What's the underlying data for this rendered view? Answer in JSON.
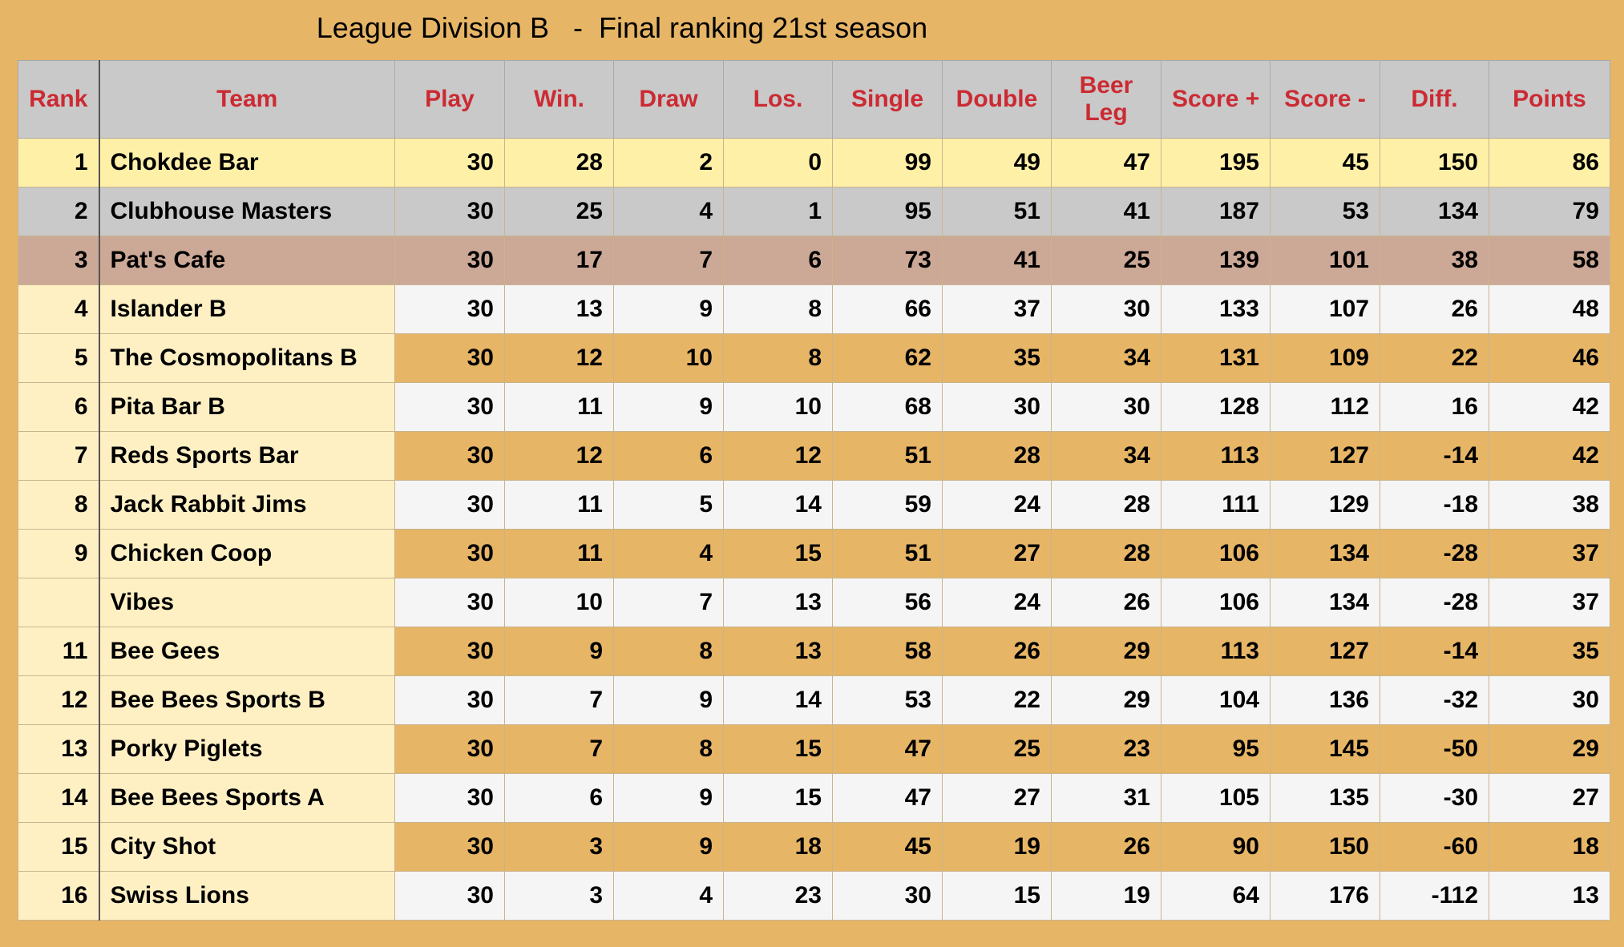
{
  "title": "League Division B   -  Final ranking 21st season",
  "columns": [
    "Rank",
    "Team",
    "Play",
    "Win.",
    "Draw",
    "Los.",
    "Single",
    "Double",
    "Beer Leg",
    "Score +",
    "Score -",
    "Diff.",
    "Points"
  ],
  "rows": [
    {
      "rank": "1",
      "team": "Chokdee Bar",
      "play": "30",
      "win": "28",
      "draw": "2",
      "los": "0",
      "single": "99",
      "double": "49",
      "beer_leg": "47",
      "score_plus": "195",
      "score_minus": "45",
      "diff": "150",
      "points": "86",
      "highlight": "gold"
    },
    {
      "rank": "2",
      "team": "Clubhouse Masters",
      "play": "30",
      "win": "25",
      "draw": "4",
      "los": "1",
      "single": "95",
      "double": "51",
      "beer_leg": "41",
      "score_plus": "187",
      "score_minus": "53",
      "diff": "134",
      "points": "79",
      "highlight": "silver"
    },
    {
      "rank": "3",
      "team": "Pat's Cafe",
      "play": "30",
      "win": "17",
      "draw": "7",
      "los": "6",
      "single": "73",
      "double": "41",
      "beer_leg": "25",
      "score_plus": "139",
      "score_minus": "101",
      "diff": "38",
      "points": "58",
      "highlight": "bronze"
    },
    {
      "rank": "4",
      "team": "Islander B",
      "play": "30",
      "win": "13",
      "draw": "9",
      "los": "8",
      "single": "66",
      "double": "37",
      "beer_leg": "30",
      "score_plus": "133",
      "score_minus": "107",
      "diff": "26",
      "points": "48",
      "highlight": "even"
    },
    {
      "rank": "5",
      "team": "The Cosmopolitans B",
      "play": "30",
      "win": "12",
      "draw": "10",
      "los": "8",
      "single": "62",
      "double": "35",
      "beer_leg": "34",
      "score_plus": "131",
      "score_minus": "109",
      "diff": "22",
      "points": "46",
      "highlight": "odd"
    },
    {
      "rank": "6",
      "team": "Pita Bar B",
      "play": "30",
      "win": "11",
      "draw": "9",
      "los": "10",
      "single": "68",
      "double": "30",
      "beer_leg": "30",
      "score_plus": "128",
      "score_minus": "112",
      "diff": "16",
      "points": "42",
      "highlight": "even"
    },
    {
      "rank": "7",
      "team": "Reds Sports Bar",
      "play": "30",
      "win": "12",
      "draw": "6",
      "los": "12",
      "single": "51",
      "double": "28",
      "beer_leg": "34",
      "score_plus": "113",
      "score_minus": "127",
      "diff": "-14",
      "points": "42",
      "highlight": "odd"
    },
    {
      "rank": "8",
      "team": "Jack Rabbit Jims",
      "play": "30",
      "win": "11",
      "draw": "5",
      "los": "14",
      "single": "59",
      "double": "24",
      "beer_leg": "28",
      "score_plus": "111",
      "score_minus": "129",
      "diff": "-18",
      "points": "38",
      "highlight": "even"
    },
    {
      "rank": "9",
      "team": "Chicken Coop",
      "play": "30",
      "win": "11",
      "draw": "4",
      "los": "15",
      "single": "51",
      "double": "27",
      "beer_leg": "28",
      "score_plus": "106",
      "score_minus": "134",
      "diff": "-28",
      "points": "37",
      "highlight": "odd"
    },
    {
      "rank": "",
      "team": "Vibes",
      "play": "30",
      "win": "10",
      "draw": "7",
      "los": "13",
      "single": "56",
      "double": "24",
      "beer_leg": "26",
      "score_plus": "106",
      "score_minus": "134",
      "diff": "-28",
      "points": "37",
      "highlight": "even"
    },
    {
      "rank": "11",
      "team": "Bee Gees",
      "play": "30",
      "win": "9",
      "draw": "8",
      "los": "13",
      "single": "58",
      "double": "26",
      "beer_leg": "29",
      "score_plus": "113",
      "score_minus": "127",
      "diff": "-14",
      "points": "35",
      "highlight": "odd"
    },
    {
      "rank": "12",
      "team": "Bee Bees Sports B",
      "play": "30",
      "win": "7",
      "draw": "9",
      "los": "14",
      "single": "53",
      "double": "22",
      "beer_leg": "29",
      "score_plus": "104",
      "score_minus": "136",
      "diff": "-32",
      "points": "30",
      "highlight": "even"
    },
    {
      "rank": "13",
      "team": "Porky Piglets",
      "play": "30",
      "win": "7",
      "draw": "8",
      "los": "15",
      "single": "47",
      "double": "25",
      "beer_leg": "23",
      "score_plus": "95",
      "score_minus": "145",
      "diff": "-50",
      "points": "29",
      "highlight": "odd"
    },
    {
      "rank": "14",
      "team": "Bee Bees Sports A",
      "play": "30",
      "win": "6",
      "draw": "9",
      "los": "15",
      "single": "47",
      "double": "27",
      "beer_leg": "31",
      "score_plus": "105",
      "score_minus": "135",
      "diff": "-30",
      "points": "27",
      "highlight": "even"
    },
    {
      "rank": "15",
      "team": "City Shot",
      "play": "30",
      "win": "3",
      "draw": "9",
      "los": "18",
      "single": "45",
      "double": "19",
      "beer_leg": "26",
      "score_plus": "90",
      "score_minus": "150",
      "diff": "-60",
      "points": "18",
      "highlight": "odd"
    },
    {
      "rank": "16",
      "team": "Swiss Lions",
      "play": "30",
      "win": "3",
      "draw": "4",
      "los": "23",
      "single": "30",
      "double": "15",
      "beer_leg": "19",
      "score_plus": "64",
      "score_minus": "176",
      "diff": "-112",
      "points": "13",
      "highlight": "even"
    }
  ],
  "colors": {
    "background": "#e6b566",
    "header_bg": "#c9c9c9",
    "header_text": "#cc2a33",
    "gold": "#fff0a8",
    "silver": "#c9c9c9",
    "bronze": "#cca896",
    "team_cell": "#fff0c4",
    "row_even": "#f5f5f5"
  }
}
